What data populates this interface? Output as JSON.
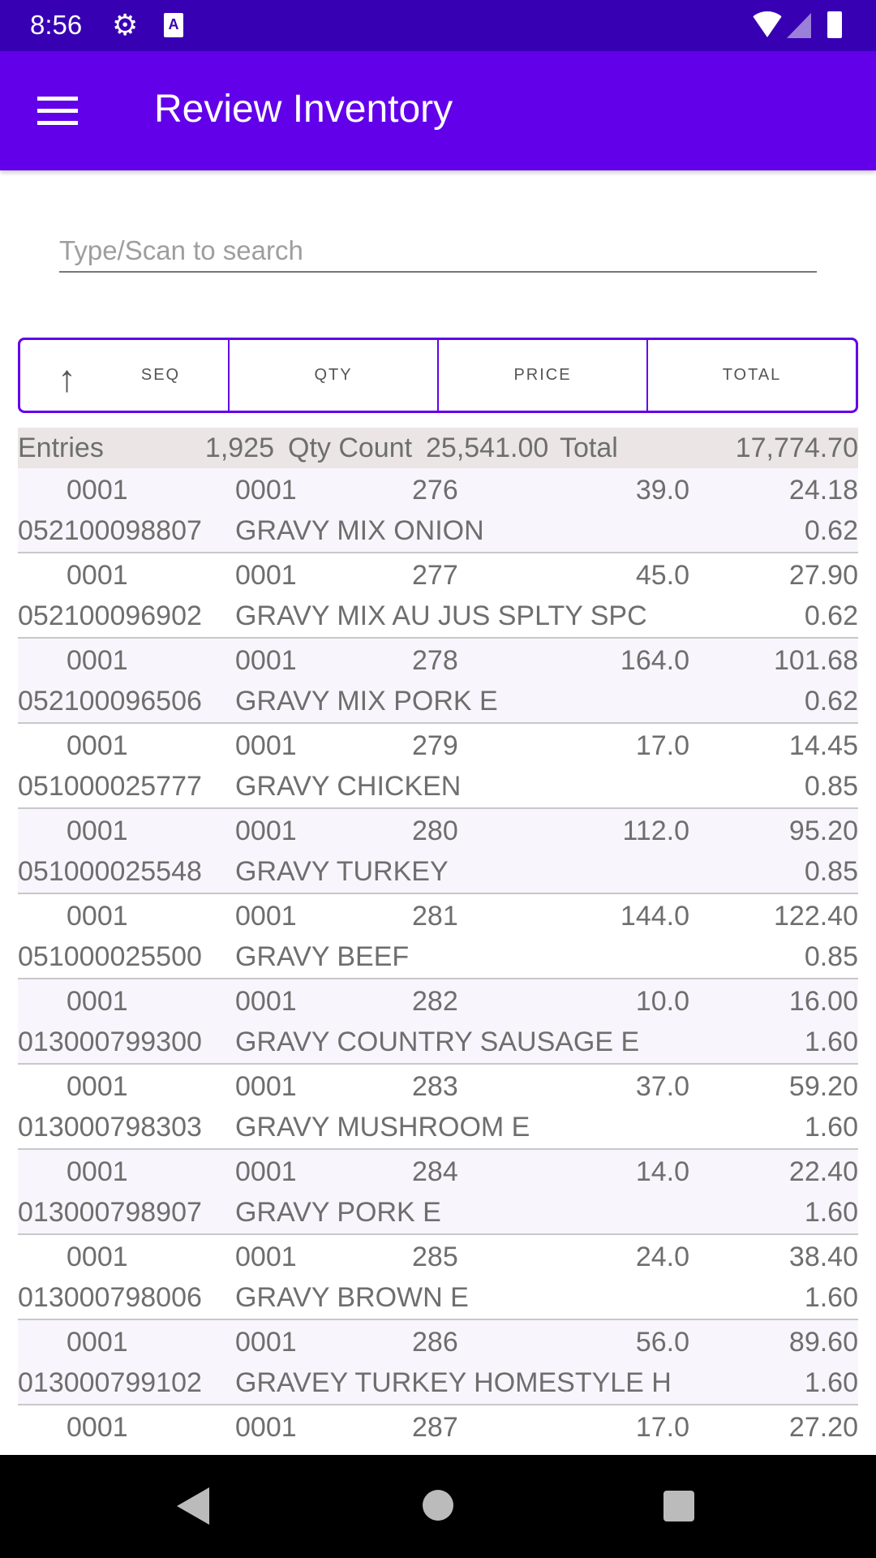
{
  "status_bar": {
    "time": "8:56",
    "icons": [
      "gear-icon",
      "a-icon",
      "wifi-icon",
      "signal-icon",
      "battery-icon"
    ]
  },
  "app_bar": {
    "title": "Review Inventory",
    "menu_icon": "hamburger-icon"
  },
  "search": {
    "placeholder": "Type/Scan to search",
    "value": ""
  },
  "sort_bar": {
    "sort_direction": "ascending",
    "buttons": [
      "SEQ",
      "QTY",
      "PRICE",
      "TOTAL"
    ],
    "accent": "#6200ea"
  },
  "summary": {
    "entries_label": "Entries",
    "entries": "1,925",
    "qty_label": "Qty Count",
    "qty": "25,541.00",
    "total_label": "Total",
    "total": "17,774.70"
  },
  "rows": [
    {
      "a": "0001",
      "b": "0001",
      "seq": "276",
      "qty": "39.0",
      "total": "24.18",
      "upc": "052100098807",
      "desc": "GRAVY MIX ONION",
      "price": "0.62"
    },
    {
      "a": "0001",
      "b": "0001",
      "seq": "277",
      "qty": "45.0",
      "total": "27.90",
      "upc": "052100096902",
      "desc": "GRAVY MIX AU JUS SPLTY SPC",
      "price": "0.62"
    },
    {
      "a": "0001",
      "b": "0001",
      "seq": "278",
      "qty": "164.0",
      "total": "101.68",
      "upc": "052100096506",
      "desc": "GRAVY MIX PORK E",
      "price": "0.62"
    },
    {
      "a": "0001",
      "b": "0001",
      "seq": "279",
      "qty": "17.0",
      "total": "14.45",
      "upc": "051000025777",
      "desc": "GRAVY CHICKEN",
      "price": "0.85"
    },
    {
      "a": "0001",
      "b": "0001",
      "seq": "280",
      "qty": "112.0",
      "total": "95.20",
      "upc": "051000025548",
      "desc": "GRAVY TURKEY",
      "price": "0.85"
    },
    {
      "a": "0001",
      "b": "0001",
      "seq": "281",
      "qty": "144.0",
      "total": "122.40",
      "upc": "051000025500",
      "desc": "GRAVY BEEF",
      "price": "0.85"
    },
    {
      "a": "0001",
      "b": "0001",
      "seq": "282",
      "qty": "10.0",
      "total": "16.00",
      "upc": "013000799300",
      "desc": "GRAVY COUNTRY SAUSAGE E",
      "price": "1.60"
    },
    {
      "a": "0001",
      "b": "0001",
      "seq": "283",
      "qty": "37.0",
      "total": "59.20",
      "upc": "013000798303",
      "desc": "GRAVY MUSHROOM E",
      "price": "1.60"
    },
    {
      "a": "0001",
      "b": "0001",
      "seq": "284",
      "qty": "14.0",
      "total": "22.40",
      "upc": "013000798907",
      "desc": "GRAVY PORK E",
      "price": "1.60"
    },
    {
      "a": "0001",
      "b": "0001",
      "seq": "285",
      "qty": "24.0",
      "total": "38.40",
      "upc": "013000798006",
      "desc": "GRAVY BROWN E",
      "price": "1.60"
    },
    {
      "a": "0001",
      "b": "0001",
      "seq": "286",
      "qty": "56.0",
      "total": "89.60",
      "upc": "013000799102",
      "desc": "GRAVEY TURKEY HOMESTYLE H",
      "price": "1.60"
    },
    {
      "a": "0001",
      "b": "0001",
      "seq": "287",
      "qty": "17.0",
      "total": "27.20",
      "upc": "",
      "desc": "",
      "price": ""
    }
  ]
}
